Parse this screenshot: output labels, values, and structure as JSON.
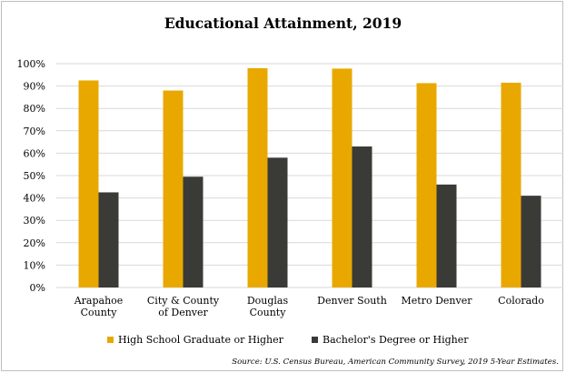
{
  "chart_data": {
    "type": "bar",
    "title": "Educational Attainment, 2019",
    "categories": [
      [
        "Arapahoe",
        "County"
      ],
      [
        "City & County",
        "of Denver"
      ],
      [
        "Douglas",
        "County"
      ],
      [
        "Denver South"
      ],
      [
        "Metro Denver"
      ],
      [
        "Colorado"
      ]
    ],
    "series": [
      {
        "name": "High School Graduate or Higher",
        "color": "#e8a800",
        "values": [
          92.5,
          88,
          98,
          97.8,
          91.3,
          91.5
        ]
      },
      {
        "name": "Bachelor's Degree or Higher",
        "color": "#3a3a37",
        "values": [
          42.5,
          49.5,
          58,
          63,
          46,
          41
        ]
      }
    ],
    "y_ticks": [
      "0%",
      "10%",
      "20%",
      "30%",
      "40%",
      "50%",
      "60%",
      "70%",
      "80%",
      "90%",
      "100%"
    ],
    "ylim": [
      0,
      100
    ],
    "grid": true,
    "legend_position": "bottom",
    "source": "Source: U.S. Census Bureau, American Community Survey, 2019 5-Year Estimates."
  }
}
